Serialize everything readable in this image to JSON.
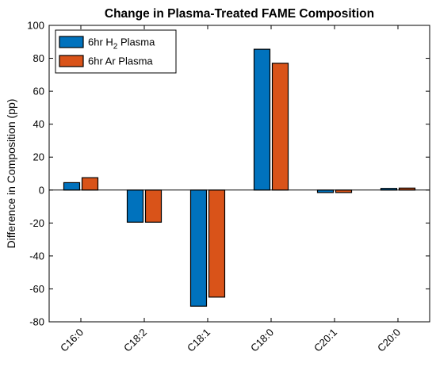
{
  "chart_data": {
    "type": "bar",
    "title": "Change in Plasma-Treated FAME Composition",
    "xlabel": "",
    "ylabel": "Difference in Composition (pp)",
    "ylim": [
      -80,
      100
    ],
    "yticks": [
      -80,
      -60,
      -40,
      -20,
      0,
      20,
      40,
      60,
      80,
      100
    ],
    "categories": [
      "C16:0",
      "C18:2",
      "C18:1",
      "C18:0",
      "C20:1",
      "C20:0"
    ],
    "series": [
      {
        "name": "6hr H2 Plasma",
        "legend": {
          "prefix": "6hr H",
          "subscript": "2",
          "suffix": " Plasma"
        },
        "color": "#0072BD",
        "values": [
          4.5,
          -19.5,
          -70.5,
          85.5,
          -1.5,
          1.0
        ]
      },
      {
        "name": "6hr Ar Plasma",
        "legend": {
          "prefix": "6hr Ar Plasma",
          "subscript": "",
          "suffix": ""
        },
        "color": "#D95319",
        "values": [
          7.5,
          -19.5,
          -65.0,
          77.0,
          -1.5,
          1.2
        ]
      }
    ],
    "grid": false,
    "legend_position": "top-left"
  }
}
